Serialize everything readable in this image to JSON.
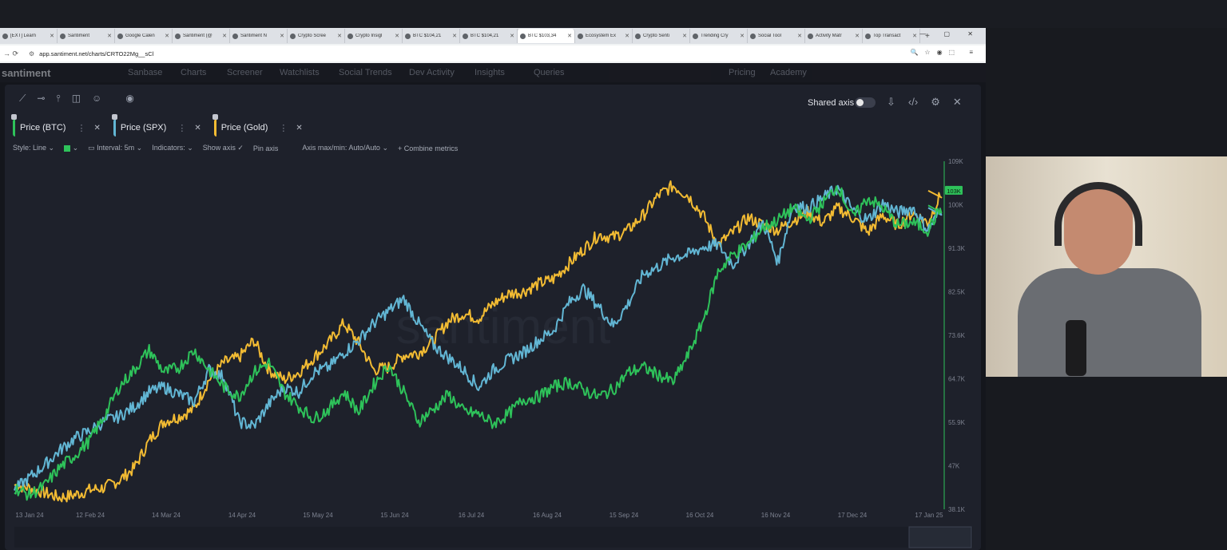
{
  "browser": {
    "tabs": [
      {
        "label": "[EXT] Learn",
        "active": false
      },
      {
        "label": "Santiment",
        "active": false
      },
      {
        "label": "Google Calen",
        "active": false
      },
      {
        "label": "Santiment (@",
        "active": false
      },
      {
        "label": "Santiment N",
        "active": false
      },
      {
        "label": "Crypto Scree",
        "active": false
      },
      {
        "label": "Crypto Insigl",
        "active": false
      },
      {
        "label": "BTC $104,21",
        "active": false
      },
      {
        "label": "BTC $104,21",
        "active": false
      },
      {
        "label": "BTC $103,34",
        "active": true
      },
      {
        "label": "Ecosystem Ex",
        "active": false
      },
      {
        "label": "Crypto Senti",
        "active": false
      },
      {
        "label": "Trending Cry",
        "active": false
      },
      {
        "label": "Social Tool",
        "active": false
      },
      {
        "label": "Activity Matr",
        "active": false
      },
      {
        "label": "Top Transact",
        "active": false
      }
    ],
    "new_tab": "+",
    "url": "app.santiment.net/charts/CRTO22Mg__sCl"
  },
  "app_nav": {
    "logo": "santiment",
    "items": [
      "Sanbase",
      "Charts",
      "Screener",
      "Watchlists",
      "Social Trends",
      "Dev Activity",
      "Insights",
      "Queries",
      "Pricing",
      "Academy"
    ]
  },
  "toolbar": {
    "shared_axis_label": "Shared axis",
    "shared_axis_on": false
  },
  "metrics": [
    {
      "label": "Price (BTC)",
      "color": "#2ec25a"
    },
    {
      "label": "Price (SPX)",
      "color": "#62b6d4"
    },
    {
      "label": "Price (Gold)",
      "color": "#f2bb33"
    }
  ],
  "options": {
    "style": "Style: Line",
    "interval": "Interval: 5m",
    "indicators": "Indicators:",
    "show_axis": "Show axis",
    "pin_axis": "Pin axis",
    "axis_maxmin": "Axis max/min: Auto/Auto",
    "combine": "Combine metrics"
  },
  "chart_data": {
    "type": "line",
    "watermark": "santiment",
    "x_tick_labels": [
      "13 Jan 24",
      "12 Feb 24",
      "14 Mar 24",
      "14 Apr 24",
      "15 May 24",
      "15 Jun 24",
      "16 Jul 24",
      "16 Aug 24",
      "15 Sep 24",
      "16 Oct 24",
      "16 Nov 24",
      "17 Dec 24",
      "17 Jan 25"
    ],
    "y_tick_labels": [
      "109K",
      "100K",
      "91.3K",
      "82.5K",
      "73.6K",
      "64.7K",
      "55.9K",
      "47K",
      "38.1K"
    ],
    "ylim": [
      38.1,
      109
    ],
    "current_value_label": "103K",
    "series": [
      {
        "name": "Price (BTC)",
        "color": "#2ec25a",
        "values": [
          42.5,
          41.0,
          42.8,
          46.5,
          49.0,
          52.0,
          57.0,
          63.0,
          66.5,
          70.5,
          66.0,
          67.0,
          70.5,
          66.5,
          63.0,
          61.0,
          66.0,
          68.0,
          62.0,
          59.0,
          56.5,
          58.5,
          62.0,
          58.0,
          63.5,
          67.5,
          62.0,
          56.0,
          58.5,
          61.5,
          58.0,
          57.5,
          55.5,
          57.5,
          60.5,
          61.0,
          63.0,
          64.0,
          62.5,
          61.0,
          62.5,
          66.0,
          67.0,
          65.5,
          64.0,
          69.5,
          76.5,
          86.5,
          90.0,
          92.0,
          95.5,
          97.0,
          99.5,
          97.0,
          100.5,
          104.0,
          97.5,
          101.5,
          99.5,
          96.0,
          96.5,
          95.0,
          100.0
        ]
      },
      {
        "name": "Price (SPX)",
        "color": "#62b6d4",
        "values": [
          42.0,
          44.5,
          47.0,
          50.0,
          52.5,
          54.0,
          56.0,
          57.0,
          59.0,
          62.0,
          63.0,
          61.5,
          60.0,
          66.5,
          65.0,
          56.0,
          55.0,
          59.5,
          63.0,
          62.0,
          66.0,
          67.0,
          70.0,
          72.5,
          76.0,
          78.5,
          81.0,
          76.0,
          71.5,
          69.0,
          66.5,
          63.0,
          66.5,
          68.5,
          70.0,
          72.5,
          74.5,
          80.0,
          83.0,
          79.5,
          75.5,
          80.0,
          86.0,
          87.5,
          89.5,
          90.0,
          91.5,
          92.0,
          88.0,
          92.0,
          96.5,
          88.5,
          100.0,
          99.5,
          101.5,
          103.5,
          99.0,
          97.0,
          100.5,
          98.5,
          99.5,
          95.0,
          99.5
        ]
      },
      {
        "name": "Price (Gold)",
        "color": "#f2bb33",
        "values": [
          43.0,
          42.5,
          41.5,
          40.5,
          41.0,
          42.0,
          42.5,
          44.0,
          46.5,
          52.0,
          56.0,
          57.0,
          58.5,
          64.5,
          68.0,
          69.0,
          72.5,
          66.5,
          64.5,
          66.0,
          69.0,
          72.0,
          76.0,
          72.0,
          66.5,
          67.0,
          69.5,
          70.0,
          72.5,
          76.5,
          78.0,
          77.0,
          80.0,
          82.0,
          82.5,
          84.0,
          85.0,
          88.0,
          91.0,
          94.0,
          93.5,
          95.0,
          98.0,
          102.0,
          104.0,
          102.0,
          98.0,
          92.0,
          94.5,
          97.5,
          96.0,
          95.0,
          97.0,
          98.5,
          96.5,
          99.5,
          97.5,
          94.5,
          98.0,
          96.0,
          98.5,
          96.5,
          103.0
        ]
      }
    ]
  }
}
